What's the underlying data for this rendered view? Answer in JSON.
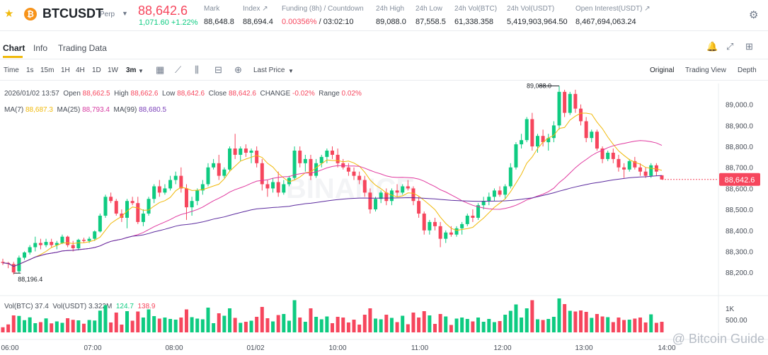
{
  "ticker": {
    "symbol": "BTCUSDT",
    "contract": "Perp",
    "last_price": "88,642.6",
    "change": "1,071.60 +1.22%",
    "stats": [
      {
        "label": "Mark",
        "value": "88,648.8"
      },
      {
        "label": "Index",
        "value": "88,694.4"
      },
      {
        "label": "Funding (8h) / Countdown",
        "value_red": "0.00356%",
        "value": " / 03:02:10"
      },
      {
        "label": "24h High",
        "value": "89,088.0"
      },
      {
        "label": "24h Low",
        "value": "87,558.5"
      },
      {
        "label": "24h Vol(BTC)",
        "value": "61,338.358"
      },
      {
        "label": "24h Vol(USDT)",
        "value": "5,419,903,964.50"
      },
      {
        "label": "Open Interest(USDT)",
        "value": "8,467,694,063.24"
      }
    ]
  },
  "tabs": [
    "Chart",
    "Info",
    "Trading Data"
  ],
  "toolbar": {
    "intervals": [
      "Time",
      "1s",
      "15m",
      "1H",
      "4H",
      "1D",
      "1W",
      "3m"
    ],
    "price_type": "Last Price",
    "views": [
      "Original",
      "Trading View",
      "Depth"
    ]
  },
  "ohlc": {
    "date": "2026/01/02 13:57",
    "open": "88,662.5",
    "high": "88,662.6",
    "low": "88,642.6",
    "close": "88,642.6",
    "change": "-0.02%",
    "range": "0.02%"
  },
  "ma": {
    "ma7": "88,687.3",
    "ma25": "88,793.4",
    "ma99": "88,680.5"
  },
  "vol": {
    "btc": "37.4",
    "usdt": "3.322M",
    "a": "124.7",
    "b": "138.9"
  },
  "watermark": "BINANCE",
  "footer_watermark": "@ Bitcoin Guide",
  "colors": {
    "up": "#0ecb81",
    "down": "#f6465d",
    "ma7": "#f0b90b",
    "ma25": "#e0399f",
    "ma99": "#5b2a9e"
  },
  "chart_data": {
    "type": "candlestick",
    "interval": "3m",
    "y_ticks": [
      88200,
      88300,
      88400,
      88500,
      88600,
      88700,
      88800,
      88900,
      89000
    ],
    "ylim": [
      88150,
      89100
    ],
    "x_ticks": [
      "06:00",
      "07:00",
      "08:00",
      "01/02",
      "10:00",
      "11:00",
      "12:00",
      "13:00",
      "14:00"
    ],
    "high_label": "89,088.0",
    "low_label": "88,196.4",
    "last_label": "88,642.6",
    "vol_ticks": [
      "1K",
      "500.00"
    ],
    "candles": [
      [
        88250,
        88265,
        88235,
        88245
      ],
      [
        88245,
        88250,
        88220,
        88240
      ],
      [
        88240,
        88250,
        88190,
        88200
      ],
      [
        88205,
        88280,
        88196,
        88270
      ],
      [
        88270,
        88300,
        88260,
        88295
      ],
      [
        88295,
        88330,
        88285,
        88320
      ],
      [
        88320,
        88370,
        88300,
        88340
      ],
      [
        88340,
        88360,
        88310,
        88330
      ],
      [
        88330,
        88360,
        88320,
        88345
      ],
      [
        88345,
        88360,
        88320,
        88330
      ],
      [
        88330,
        88350,
        88310,
        88340
      ],
      [
        88340,
        88380,
        88335,
        88370
      ],
      [
        88370,
        88375,
        88320,
        88330
      ],
      [
        88330,
        88350,
        88300,
        88315
      ],
      [
        88315,
        88360,
        88305,
        88355
      ],
      [
        88355,
        88365,
        88340,
        88350
      ],
      [
        88350,
        88370,
        88340,
        88360
      ],
      [
        88360,
        88400,
        88350,
        88395
      ],
      [
        88395,
        88480,
        88390,
        88470
      ],
      [
        88470,
        88570,
        88460,
        88560
      ],
      [
        88560,
        88580,
        88530,
        88540
      ],
      [
        88540,
        88550,
        88470,
        88480
      ],
      [
        88480,
        88500,
        88440,
        88460
      ],
      [
        88460,
        88550,
        88410,
        88540
      ],
      [
        88540,
        88560,
        88520,
        88530
      ],
      [
        88530,
        88560,
        88430,
        88440
      ],
      [
        88440,
        88500,
        88420,
        88480
      ],
      [
        88480,
        88560,
        88470,
        88550
      ],
      [
        88550,
        88620,
        88530,
        88610
      ],
      [
        88610,
        88640,
        88560,
        88580
      ],
      [
        88580,
        88620,
        88570,
        88600
      ],
      [
        88600,
        88660,
        88590,
        88640
      ],
      [
        88640,
        88680,
        88620,
        88660
      ],
      [
        88660,
        88700,
        88580,
        88600
      ],
      [
        88600,
        88620,
        88450,
        88510
      ],
      [
        88510,
        88560,
        88470,
        88540
      ],
      [
        88540,
        88600,
        88520,
        88590
      ],
      [
        88590,
        88640,
        88570,
        88620
      ],
      [
        88620,
        88720,
        88610,
        88700
      ],
      [
        88700,
        88740,
        88690,
        88720
      ],
      [
        88720,
        88760,
        88640,
        88660
      ],
      [
        88660,
        88700,
        88650,
        88690
      ],
      [
        88690,
        88800,
        88680,
        88790
      ],
      [
        88790,
        88860,
        88740,
        88760
      ],
      [
        88760,
        88800,
        88730,
        88790
      ],
      [
        88790,
        88810,
        88750,
        88770
      ],
      [
        88770,
        88790,
        88720,
        88780
      ],
      [
        88780,
        88800,
        88700,
        88720
      ],
      [
        88720,
        88740,
        88590,
        88620
      ],
      [
        88620,
        88640,
        88560,
        88600
      ],
      [
        88600,
        88650,
        88580,
        88630
      ],
      [
        88630,
        88680,
        88560,
        88580
      ],
      [
        88580,
        88640,
        88570,
        88620
      ],
      [
        88620,
        88660,
        88610,
        88650
      ],
      [
        88650,
        88800,
        88640,
        88780
      ],
      [
        88780,
        88800,
        88700,
        88720
      ],
      [
        88720,
        88760,
        88680,
        88740
      ],
      [
        88740,
        88760,
        88640,
        88660
      ],
      [
        88660,
        88740,
        88650,
        88720
      ],
      [
        88720,
        88760,
        88700,
        88750
      ],
      [
        88750,
        88790,
        88720,
        88780
      ],
      [
        88780,
        88800,
        88740,
        88760
      ],
      [
        88760,
        88790,
        88700,
        88720
      ],
      [
        88720,
        88740,
        88690,
        88700
      ],
      [
        88700,
        88720,
        88660,
        88680
      ],
      [
        88680,
        88700,
        88640,
        88660
      ],
      [
        88660,
        88680,
        88620,
        88640
      ],
      [
        88640,
        88660,
        88560,
        88580
      ],
      [
        88580,
        88600,
        88480,
        88500
      ],
      [
        88500,
        88560,
        88490,
        88550
      ],
      [
        88550,
        88590,
        88530,
        88580
      ],
      [
        88580,
        88600,
        88520,
        88540
      ],
      [
        88540,
        88600,
        88520,
        88590
      ],
      [
        88590,
        88620,
        88560,
        88580
      ],
      [
        88580,
        88620,
        88570,
        88610
      ],
      [
        88610,
        88640,
        88590,
        88600
      ],
      [
        88600,
        88610,
        88520,
        88540
      ],
      [
        88540,
        88560,
        88460,
        88480
      ],
      [
        88480,
        88490,
        88380,
        88400
      ],
      [
        88400,
        88450,
        88380,
        88440
      ],
      [
        88440,
        88460,
        88400,
        88420
      ],
      [
        88420,
        88440,
        88320,
        88360
      ],
      [
        88360,
        88400,
        88340,
        88390
      ],
      [
        88390,
        88420,
        88370,
        88380
      ],
      [
        88380,
        88420,
        88370,
        88410
      ],
      [
        88410,
        88440,
        88380,
        88430
      ],
      [
        88430,
        88480,
        88420,
        88470
      ],
      [
        88470,
        88500,
        88440,
        88460
      ],
      [
        88460,
        88530,
        88450,
        88520
      ],
      [
        88520,
        88560,
        88500,
        88540
      ],
      [
        88540,
        88580,
        88520,
        88560
      ],
      [
        88560,
        88600,
        88540,
        88590
      ],
      [
        88590,
        88610,
        88560,
        88570
      ],
      [
        88570,
        88620,
        88550,
        88610
      ],
      [
        88610,
        88720,
        88600,
        88700
      ],
      [
        88700,
        88820,
        88690,
        88810
      ],
      [
        88810,
        88860,
        88790,
        88830
      ],
      [
        88830,
        88940,
        88820,
        88930
      ],
      [
        88930,
        88960,
        88780,
        88800
      ],
      [
        88800,
        88860,
        88770,
        88850
      ],
      [
        88850,
        88880,
        88800,
        88820
      ],
      [
        88820,
        88860,
        88780,
        88840
      ],
      [
        88840,
        88920,
        88820,
        88900
      ],
      [
        88900,
        89088,
        88880,
        89060
      ],
      [
        89060,
        89070,
        88940,
        88960
      ],
      [
        88960,
        89060,
        88950,
        89050
      ],
      [
        89050,
        89070,
        88960,
        88980
      ],
      [
        88980,
        89000,
        88900,
        88920
      ],
      [
        88920,
        88940,
        88820,
        88840
      ],
      [
        88840,
        88880,
        88820,
        88870
      ],
      [
        88870,
        88880,
        88780,
        88790
      ],
      [
        88790,
        88800,
        88720,
        88740
      ],
      [
        88740,
        88780,
        88730,
        88770
      ],
      [
        88770,
        88790,
        88720,
        88740
      ],
      [
        88740,
        88760,
        88680,
        88700
      ],
      [
        88700,
        88720,
        88650,
        88690
      ],
      [
        88690,
        88740,
        88680,
        88730
      ],
      [
        88730,
        88750,
        88690,
        88700
      ],
      [
        88700,
        88720,
        88660,
        88680
      ],
      [
        88680,
        88700,
        88650,
        88660
      ],
      [
        88660,
        88720,
        88650,
        88710
      ],
      [
        88710,
        88720,
        88660,
        88680
      ],
      [
        88662.5,
        88662.6,
        88642.6,
        88642.6
      ]
    ]
  }
}
